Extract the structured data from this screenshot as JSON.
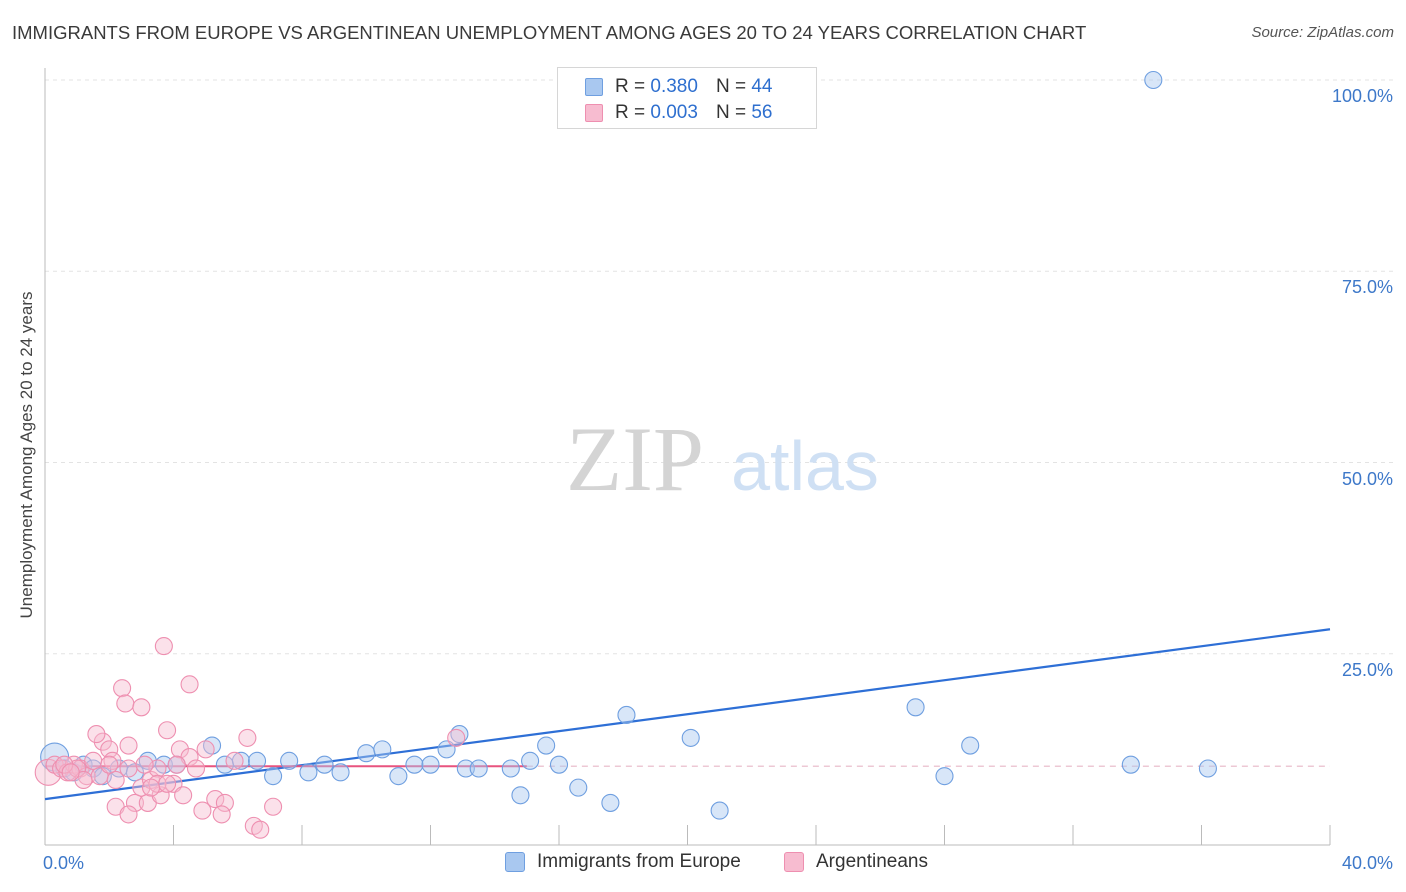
{
  "header": {
    "title": "IMMIGRANTS FROM EUROPE VS ARGENTINEAN UNEMPLOYMENT AMONG AGES 20 TO 24 YEARS CORRELATION CHART",
    "source": "Source: ZipAtlas.com"
  },
  "watermark": {
    "zip": "ZIP",
    "atlas": "atlas"
  },
  "legend": {
    "rows": [
      {
        "r_label": "R =",
        "r_value": "0.380",
        "n_label": "N =",
        "n_value": "44",
        "color": "#a9c8f0",
        "border": "#6f9fe0"
      },
      {
        "r_label": "R =",
        "r_value": "0.003",
        "n_label": "N =",
        "n_value": "56",
        "color": "#f7bcd0",
        "border": "#ee8fb0"
      }
    ]
  },
  "bottom_legend": {
    "europe": "Immigrants from Europe",
    "argentineans": "Argentineans"
  },
  "chart_data": {
    "type": "scatter",
    "title": "IMMIGRANTS FROM EUROPE VS ARGENTINEAN UNEMPLOYMENT AMONG AGES 20 TO 24 YEARS CORRELATION CHART",
    "xlabel": "",
    "ylabel": "Unemployment Among Ages 20 to 24 years",
    "xlim": [
      0,
      40
    ],
    "ylim": [
      0,
      100
    ],
    "x_tick_labels": [
      "0.0%",
      "40.0%"
    ],
    "y_tick_labels": [
      "25.0%",
      "50.0%",
      "75.0%",
      "100.0%"
    ],
    "y_ticks": [
      25,
      50,
      75,
      100
    ],
    "grid": true,
    "series": [
      {
        "name": "Immigrants from Europe",
        "color": "#7aa6e6",
        "trend_color": "#2e6fd6",
        "trend": {
          "x0": 0,
          "y0": 6.0,
          "x1": 40,
          "y1": 28.2
        },
        "points": [
          [
            0.3,
            11.5
          ],
          [
            0.6,
            10.0
          ],
          [
            0.9,
            9.5
          ],
          [
            1.2,
            10.5
          ],
          [
            1.5,
            10.0
          ],
          [
            1.8,
            9.0
          ],
          [
            2.3,
            10.0
          ],
          [
            2.8,
            9.5
          ],
          [
            3.2,
            11.0
          ],
          [
            3.7,
            10.5
          ],
          [
            4.1,
            10.5
          ],
          [
            5.2,
            13.0
          ],
          [
            5.6,
            10.5
          ],
          [
            6.1,
            11.0
          ],
          [
            6.6,
            11.0
          ],
          [
            7.1,
            9.0
          ],
          [
            7.6,
            11.0
          ],
          [
            8.2,
            9.5
          ],
          [
            8.7,
            10.5
          ],
          [
            9.2,
            9.5
          ],
          [
            10.0,
            12.0
          ],
          [
            10.5,
            12.5
          ],
          [
            11.0,
            9.0
          ],
          [
            11.5,
            10.5
          ],
          [
            12.0,
            10.5
          ],
          [
            12.5,
            12.5
          ],
          [
            12.9,
            14.5
          ],
          [
            13.1,
            10.0
          ],
          [
            13.5,
            10.0
          ],
          [
            14.5,
            10.0
          ],
          [
            14.8,
            6.5
          ],
          [
            15.1,
            11.0
          ],
          [
            15.6,
            13.0
          ],
          [
            16.0,
            10.5
          ],
          [
            16.6,
            7.5
          ],
          [
            17.6,
            5.5
          ],
          [
            18.1,
            17.0
          ],
          [
            20.1,
            14.0
          ],
          [
            21.0,
            4.5
          ],
          [
            27.1,
            18.0
          ],
          [
            28.0,
            9.0
          ],
          [
            28.8,
            13.0
          ],
          [
            33.8,
            10.5
          ],
          [
            36.2,
            10.0
          ],
          [
            34.5,
            100.0
          ]
        ]
      },
      {
        "name": "Argentineans",
        "color": "#f19ab9",
        "trend_color": "#e8537f",
        "trend": {
          "x0": 0,
          "y0": 10.3,
          "x1": 15.0,
          "y1": 10.3
        },
        "dashed_extension": {
          "x0": 15.0,
          "x1": 40,
          "y": 10.3
        },
        "points": [
          [
            0.1,
            9.5
          ],
          [
            0.3,
            10.5
          ],
          [
            0.5,
            10.0
          ],
          [
            0.7,
            9.5
          ],
          [
            0.9,
            10.5
          ],
          [
            1.1,
            10.0
          ],
          [
            1.3,
            9.0
          ],
          [
            1.5,
            11.0
          ],
          [
            1.7,
            9.0
          ],
          [
            1.8,
            13.5
          ],
          [
            1.6,
            14.5
          ],
          [
            2.0,
            12.5
          ],
          [
            2.1,
            11.0
          ],
          [
            2.2,
            8.5
          ],
          [
            2.4,
            20.5
          ],
          [
            2.5,
            18.5
          ],
          [
            2.6,
            13.0
          ],
          [
            2.8,
            5.5
          ],
          [
            3.0,
            7.5
          ],
          [
            3.2,
            5.5
          ],
          [
            3.0,
            18.0
          ],
          [
            3.3,
            8.5
          ],
          [
            3.5,
            10.0
          ],
          [
            3.6,
            6.5
          ],
          [
            3.8,
            15.0
          ],
          [
            4.0,
            8.0
          ],
          [
            4.2,
            12.5
          ],
          [
            4.3,
            6.5
          ],
          [
            4.5,
            11.5
          ],
          [
            4.7,
            10.0
          ],
          [
            4.9,
            4.5
          ],
          [
            5.0,
            12.5
          ],
          [
            5.3,
            6.0
          ],
          [
            5.6,
            5.5
          ],
          [
            5.9,
            11.0
          ],
          [
            6.3,
            14.0
          ],
          [
            6.5,
            2.5
          ],
          [
            6.7,
            2.0
          ],
          [
            7.1,
            5.0
          ],
          [
            3.7,
            26.0
          ],
          [
            4.5,
            21.0
          ],
          [
            12.8,
            14.0
          ],
          [
            2.0,
            10.5
          ],
          [
            1.0,
            10.0
          ],
          [
            0.6,
            10.5
          ],
          [
            2.6,
            10.0
          ],
          [
            3.5,
            8.0
          ],
          [
            2.2,
            5.0
          ],
          [
            2.6,
            4.0
          ],
          [
            1.2,
            8.5
          ],
          [
            3.8,
            8.0
          ],
          [
            4.1,
            10.5
          ],
          [
            0.8,
            9.5
          ],
          [
            3.1,
            10.5
          ],
          [
            5.5,
            4.0
          ],
          [
            3.3,
            7.5
          ]
        ]
      }
    ]
  }
}
